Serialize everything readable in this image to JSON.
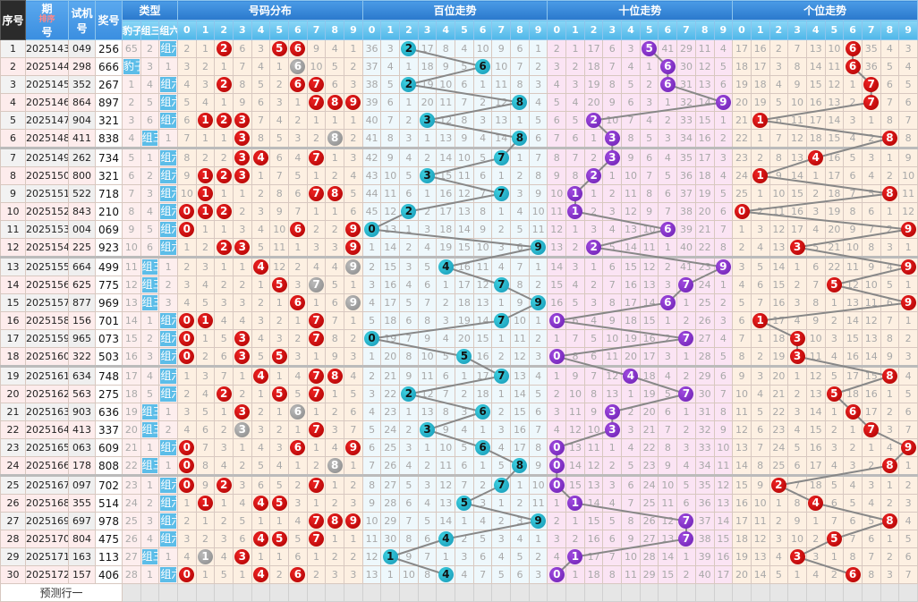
{
  "header": {
    "seq": "序号",
    "issue_a": "期",
    "issue_b": "号",
    "sort_label": "排序",
    "test_a": "试机",
    "test_b": "号",
    "prize": "奖号",
    "type": "类型",
    "type_cols": [
      "豹子",
      "组三",
      "组六"
    ],
    "dist": "号码分布",
    "hundreds": "百位走势",
    "tens": "十位走势",
    "units": "个位走势",
    "digits": [
      "0",
      "1",
      "2",
      "3",
      "4",
      "5",
      "6",
      "7",
      "8",
      "9"
    ]
  },
  "colors": {
    "dist_ball": "#c00000",
    "dist_repeat_ball": "#999999",
    "hundreds_ball": "#1ab0c8",
    "tens_ball": "#7a2cc8",
    "units_ball": "#c00000",
    "trend_line": "#888888",
    "type_tag": "#5cbde8"
  },
  "rows": [
    {
      "seq": "1",
      "issue": "2025143",
      "test": "049",
      "prize": "256"
    },
    {
      "seq": "2",
      "issue": "2025144",
      "test": "298",
      "prize": "666"
    },
    {
      "seq": "3",
      "issue": "2025145",
      "test": "352",
      "prize": "267"
    },
    {
      "seq": "4",
      "issue": "2025146",
      "test": "864",
      "prize": "897"
    },
    {
      "seq": "5",
      "issue": "2025147",
      "test": "904",
      "prize": "321"
    },
    {
      "seq": "6",
      "issue": "2025148",
      "test": "411",
      "prize": "838"
    },
    {
      "seq": "7",
      "issue": "2025149",
      "test": "262",
      "prize": "734"
    },
    {
      "seq": "8",
      "issue": "2025150",
      "test": "800",
      "prize": "321"
    },
    {
      "seq": "9",
      "issue": "2025151",
      "test": "522",
      "prize": "718"
    },
    {
      "seq": "10",
      "issue": "2025152",
      "test": "843",
      "prize": "210"
    },
    {
      "seq": "11",
      "issue": "2025153",
      "test": "004",
      "prize": "069"
    },
    {
      "seq": "12",
      "issue": "2025154",
      "test": "225",
      "prize": "923"
    },
    {
      "seq": "13",
      "issue": "2025155",
      "test": "664",
      "prize": "499"
    },
    {
      "seq": "14",
      "issue": "2025156",
      "test": "625",
      "prize": "775"
    },
    {
      "seq": "15",
      "issue": "2025157",
      "test": "877",
      "prize": "969"
    },
    {
      "seq": "16",
      "issue": "2025158",
      "test": "156",
      "prize": "701"
    },
    {
      "seq": "17",
      "issue": "2025159",
      "test": "965",
      "prize": "073"
    },
    {
      "seq": "18",
      "issue": "2025160",
      "test": "322",
      "prize": "503"
    },
    {
      "seq": "19",
      "issue": "2025161",
      "test": "634",
      "prize": "748"
    },
    {
      "seq": "20",
      "issue": "2025162",
      "test": "563",
      "prize": "275"
    },
    {
      "seq": "21",
      "issue": "2025163",
      "test": "903",
      "prize": "636"
    },
    {
      "seq": "22",
      "issue": "2025164",
      "test": "413",
      "prize": "337"
    },
    {
      "seq": "23",
      "issue": "2025165",
      "test": "063",
      "prize": "609"
    },
    {
      "seq": "24",
      "issue": "2025166",
      "test": "178",
      "prize": "808"
    },
    {
      "seq": "25",
      "issue": "2025167",
      "test": "097",
      "prize": "702"
    },
    {
      "seq": "26",
      "issue": "2025168",
      "test": "355",
      "prize": "514"
    },
    {
      "seq": "27",
      "issue": "2025169",
      "test": "697",
      "prize": "978"
    },
    {
      "seq": "28",
      "issue": "2025170",
      "test": "804",
      "prize": "475"
    },
    {
      "seq": "29",
      "issue": "2025171",
      "test": "163",
      "prize": "113"
    },
    {
      "seq": "30",
      "issue": "2025172",
      "test": "157",
      "prize": "406"
    }
  ],
  "first_row_misses": {
    "type": [
      65,
      2,
      0
    ],
    "dist": [
      2,
      1,
      0,
      6,
      3,
      0,
      0,
      9,
      4,
      1
    ],
    "hundreds": [
      36,
      3,
      0,
      17,
      8,
      4,
      10,
      9,
      6,
      1
    ],
    "tens": [
      2,
      1,
      17,
      6,
      3,
      0,
      41,
      29,
      11,
      4
    ],
    "units": [
      17,
      16,
      2,
      7,
      13,
      10,
      0,
      35,
      4,
      3
    ]
  },
  "footer": {
    "label": "预测行一"
  }
}
